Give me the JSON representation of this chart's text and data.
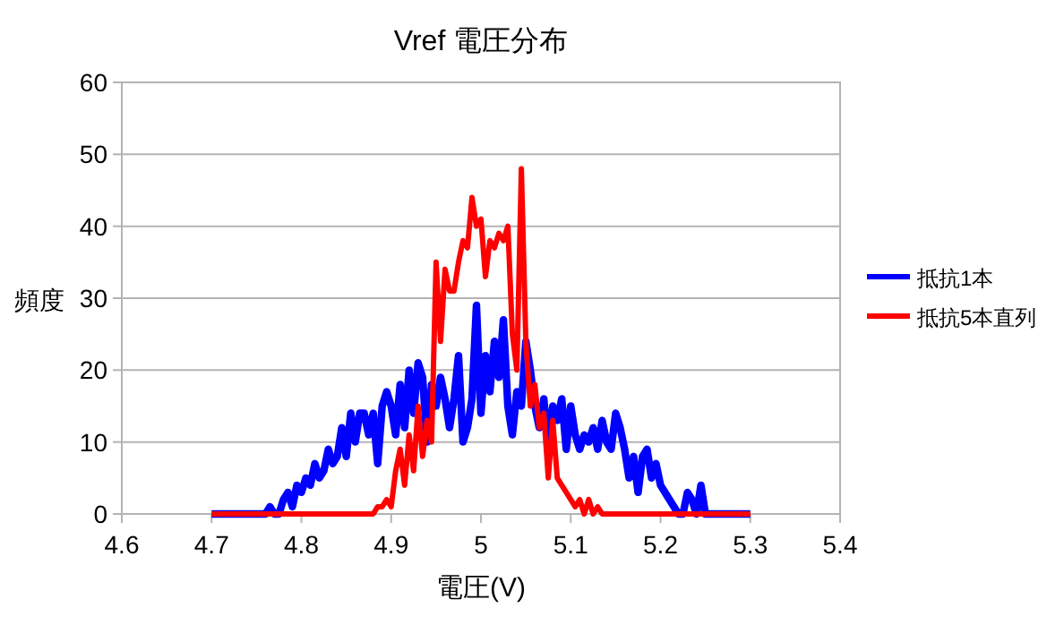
{
  "chart_data": {
    "type": "line",
    "title": "Vref 電圧分布",
    "xlabel": "電圧(V)",
    "ylabel": "頻度",
    "xlim": [
      4.6,
      5.4
    ],
    "xticks": [
      4.6,
      4.7,
      4.8,
      4.9,
      5,
      5.1,
      5.2,
      5.3,
      5.4
    ],
    "ylim": [
      0,
      60
    ],
    "yticks": [
      0,
      10,
      20,
      30,
      40,
      50,
      60
    ],
    "grid": "y",
    "legend": "right",
    "marker": "none",
    "line_style": "solid",
    "series": [
      {
        "name": "抵抗1本",
        "color": "#0000ff",
        "x": [
          4.7,
          4.76,
          4.765,
          4.77,
          4.775,
          4.78,
          4.785,
          4.79,
          4.795,
          4.8,
          4.805,
          4.81,
          4.815,
          4.82,
          4.825,
          4.83,
          4.835,
          4.84,
          4.845,
          4.85,
          4.855,
          4.86,
          4.865,
          4.87,
          4.875,
          4.88,
          4.885,
          4.89,
          4.895,
          4.9,
          4.905,
          4.91,
          4.915,
          4.92,
          4.925,
          4.93,
          4.935,
          4.94,
          4.945,
          4.95,
          4.955,
          4.96,
          4.965,
          4.97,
          4.975,
          4.98,
          4.985,
          4.99,
          4.995,
          5.0,
          5.005,
          5.01,
          5.015,
          5.02,
          5.025,
          5.03,
          5.035,
          5.04,
          5.045,
          5.05,
          5.055,
          5.06,
          5.065,
          5.07,
          5.075,
          5.08,
          5.085,
          5.09,
          5.095,
          5.1,
          5.105,
          5.11,
          5.115,
          5.12,
          5.125,
          5.13,
          5.135,
          5.14,
          5.145,
          5.15,
          5.155,
          5.16,
          5.165,
          5.17,
          5.175,
          5.18,
          5.185,
          5.19,
          5.195,
          5.2,
          5.21,
          5.22,
          5.225,
          5.23,
          5.235,
          5.24,
          5.245,
          5.25,
          5.3
        ],
        "values": [
          0,
          0,
          1,
          0,
          0,
          2,
          3,
          1,
          4,
          3,
          5,
          4,
          7,
          5,
          6,
          9,
          7,
          8,
          12,
          8,
          14,
          10,
          14,
          14,
          11,
          14,
          7,
          15,
          17,
          15,
          11,
          18,
          12,
          20,
          14,
          21,
          19,
          10,
          18,
          15,
          19,
          16,
          12,
          16,
          22,
          10,
          12,
          16,
          29,
          14,
          22,
          17,
          24,
          19,
          27,
          15,
          11,
          17,
          15,
          24,
          20,
          15,
          12,
          16,
          9,
          15,
          13,
          16,
          9,
          15,
          11,
          9,
          11,
          10,
          12,
          9,
          13,
          10,
          9,
          14,
          12,
          9,
          5,
          8,
          3,
          8,
          9,
          5,
          7,
          4,
          2,
          0,
          0,
          3,
          2,
          0,
          4,
          0,
          0
        ]
      },
      {
        "name": "抵抗5本直列",
        "color": "#ff0000",
        "x": [
          4.7,
          4.88,
          4.885,
          4.89,
          4.895,
          4.9,
          4.905,
          4.91,
          4.915,
          4.92,
          4.925,
          4.93,
          4.935,
          4.94,
          4.945,
          4.95,
          4.955,
          4.96,
          4.965,
          4.97,
          4.975,
          4.98,
          4.985,
          4.99,
          4.995,
          5.0,
          5.005,
          5.01,
          5.015,
          5.02,
          5.025,
          5.03,
          5.035,
          5.04,
          5.045,
          5.05,
          5.055,
          5.06,
          5.065,
          5.07,
          5.075,
          5.08,
          5.085,
          5.09,
          5.095,
          5.1,
          5.105,
          5.11,
          5.115,
          5.12,
          5.125,
          5.13,
          5.135,
          5.14,
          5.3
        ],
        "values": [
          0,
          0,
          1,
          1,
          2,
          1,
          6,
          9,
          4,
          11,
          6,
          15,
          8,
          13,
          10,
          35,
          24,
          34,
          31,
          31,
          35,
          38,
          37,
          44,
          40,
          41,
          33,
          38,
          37,
          39,
          38,
          40,
          25,
          20,
          48,
          24,
          15,
          18,
          12,
          14,
          5,
          13,
          5,
          4,
          3,
          2,
          1,
          2,
          0,
          2,
          0,
          1,
          0,
          0,
          0
        ]
      }
    ]
  }
}
